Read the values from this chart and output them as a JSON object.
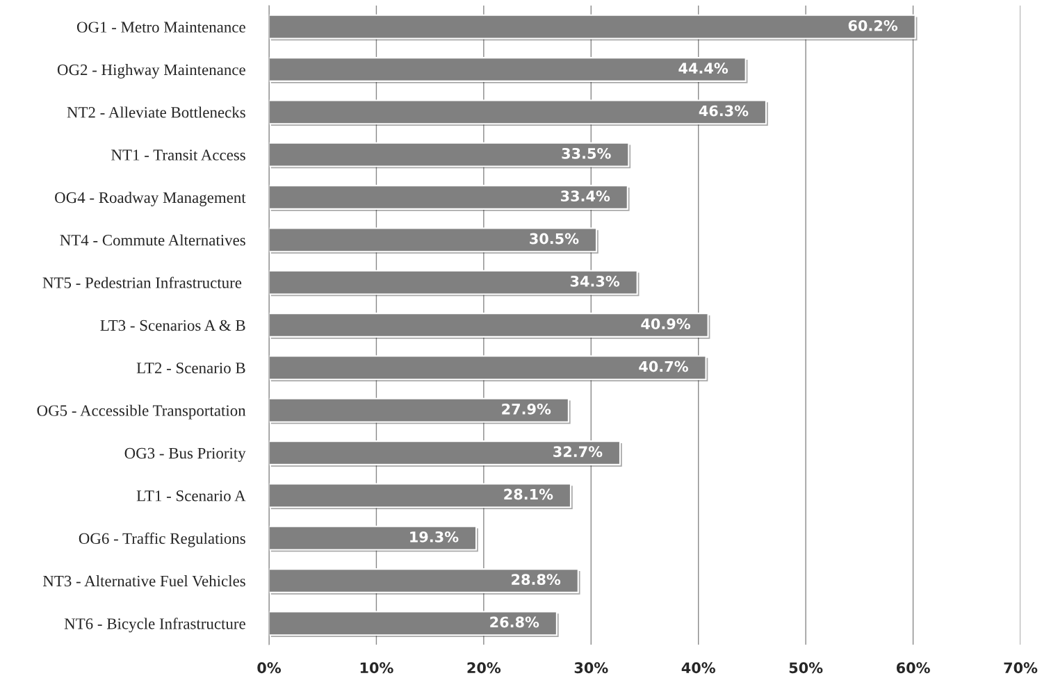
{
  "chart_data": {
    "type": "bar",
    "orientation": "horizontal",
    "categories": [
      "OG1 - Metro Maintenance",
      "OG2 - Highway Maintenance",
      "NT2 - Alleviate Bottlenecks",
      "NT1 - Transit Access",
      "OG4 - Roadway Management",
      "NT4 - Commute Alternatives",
      "NT5 - Pedestrian Infrastructure ",
      "LT3 - Scenarios A & B",
      "LT2 - Scenario B",
      "OG5 - Accessible Transportation",
      "OG3 - Bus Priority",
      "LT1 - Scenario A",
      "OG6 - Traffic Regulations",
      "NT3 - Alternative Fuel Vehicles",
      "NT6 - Bicycle Infrastructure"
    ],
    "values": [
      60.2,
      44.4,
      46.3,
      33.5,
      33.4,
      30.5,
      34.3,
      40.9,
      40.7,
      27.9,
      32.7,
      28.1,
      19.3,
      28.8,
      26.8
    ],
    "value_labels": [
      "60.2%",
      "44.4%",
      "46.3%",
      "33.5%",
      "33.4%",
      "30.5%",
      "34.3%",
      "40.9%",
      "40.7%",
      "27.9%",
      "32.7%",
      "28.1%",
      "19.3%",
      "28.8%",
      "26.8%"
    ],
    "color": "#808080",
    "xlim": [
      0,
      70
    ],
    "xticks": [
      {
        "value": 0,
        "label": "0%"
      },
      {
        "value": 10,
        "label": "10%"
      },
      {
        "value": 20,
        "label": "20%"
      },
      {
        "value": 30,
        "label": "30%"
      },
      {
        "value": 40,
        "label": "40%"
      },
      {
        "value": 50,
        "label": "50%"
      },
      {
        "value": 60,
        "label": "60%"
      },
      {
        "value": 70,
        "label": "70%"
      }
    ],
    "grid": "x"
  }
}
